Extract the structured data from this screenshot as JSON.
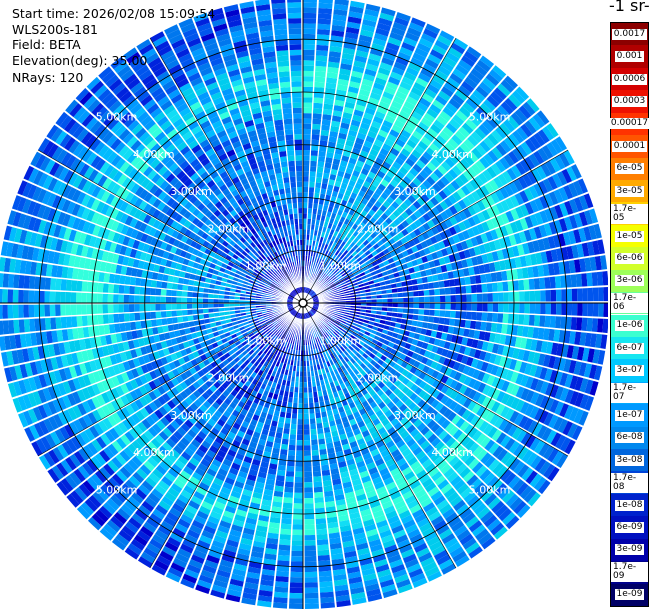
{
  "header": {
    "start_time": "Start time: 2026/02/08 15:09:54",
    "instrument": "WLS200s-181",
    "field": "Field: BETA",
    "elevation": "Elevation(deg): 35.00",
    "nrays": "NRays: 120"
  },
  "colorbar": {
    "title": "-1 sr-",
    "labels": [
      "0.0017",
      "0.001",
      "0.0006",
      "0.0003",
      "0.00017",
      "0.0001",
      "6e-05",
      "3e-05",
      "1.7e-05",
      "1e-05",
      "6e-06",
      "3e-06",
      "1.7e-06",
      "1e-06",
      "6e-07",
      "3e-07",
      "1.7e-07",
      "1e-07",
      "6e-08",
      "3e-08",
      "1.7e-08",
      "1e-08",
      "6e-09",
      "3e-09",
      "1.7e-09",
      "1e-09"
    ],
    "colors": [
      "#8b0000",
      "#b00000",
      "#d40000",
      "#ee1100",
      "#ff3300",
      "#ff5500",
      "#ff7f00",
      "#ffaa00",
      "#ffd000",
      "#f5ff00",
      "#d2ff2a",
      "#9dff5a",
      "#66ff99",
      "#3bffd0",
      "#16e6f0",
      "#00c8ff",
      "#00aaff",
      "#0099ff",
      "#0088ee",
      "#0066dd",
      "#0044d8",
      "#0022cc",
      "#0010c0",
      "#0000aa",
      "#00008a",
      "#000066"
    ]
  },
  "chart_data": {
    "type": "ppi",
    "field": "BETA",
    "elevation_deg": 35.0,
    "n_rays": 120,
    "max_range_km": 5.8,
    "range_rings_km": [
      1,
      2,
      3,
      4,
      5
    ],
    "ring_labels": [
      {
        "label": "1.00km",
        "range_km": 1,
        "bearing_deg": 315
      },
      {
        "label": "1.00km",
        "range_km": 1,
        "bearing_deg": 45
      },
      {
        "label": "1.00km",
        "range_km": 1,
        "bearing_deg": 225
      },
      {
        "label": "1.00km",
        "range_km": 1,
        "bearing_deg": 135
      },
      {
        "label": "2.00km",
        "range_km": 2,
        "bearing_deg": 315
      },
      {
        "label": "2.00km",
        "range_km": 2,
        "bearing_deg": 45
      },
      {
        "label": "2.00km",
        "range_km": 2,
        "bearing_deg": 225
      },
      {
        "label": "2.00km",
        "range_km": 2,
        "bearing_deg": 135
      },
      {
        "label": "3.00km",
        "range_km": 3,
        "bearing_deg": 315
      },
      {
        "label": "3.00km",
        "range_km": 3,
        "bearing_deg": 45
      },
      {
        "label": "3.00km",
        "range_km": 3,
        "bearing_deg": 225
      },
      {
        "label": "3.00km",
        "range_km": 3,
        "bearing_deg": 135
      },
      {
        "label": "4.00km",
        "range_km": 4,
        "bearing_deg": 315
      },
      {
        "label": "4.00km",
        "range_km": 4,
        "bearing_deg": 45
      },
      {
        "label": "4.00km",
        "range_km": 4,
        "bearing_deg": 225
      },
      {
        "label": "4.00km",
        "range_km": 4,
        "bearing_deg": 135
      },
      {
        "label": "5.00km",
        "range_km": 5,
        "bearing_deg": 315
      },
      {
        "label": "5.00km",
        "range_km": 5,
        "bearing_deg": 45
      },
      {
        "label": "5.00km",
        "range_km": 5,
        "bearing_deg": 225
      },
      {
        "label": "5.00km",
        "range_km": 5,
        "bearing_deg": 135
      }
    ],
    "spokes_deg": [
      0,
      30,
      60,
      90,
      120,
      150,
      180,
      210,
      240,
      270,
      300,
      330
    ],
    "value_range": [
      "1e-09",
      "0.0017"
    ],
    "colorscale": "log"
  }
}
